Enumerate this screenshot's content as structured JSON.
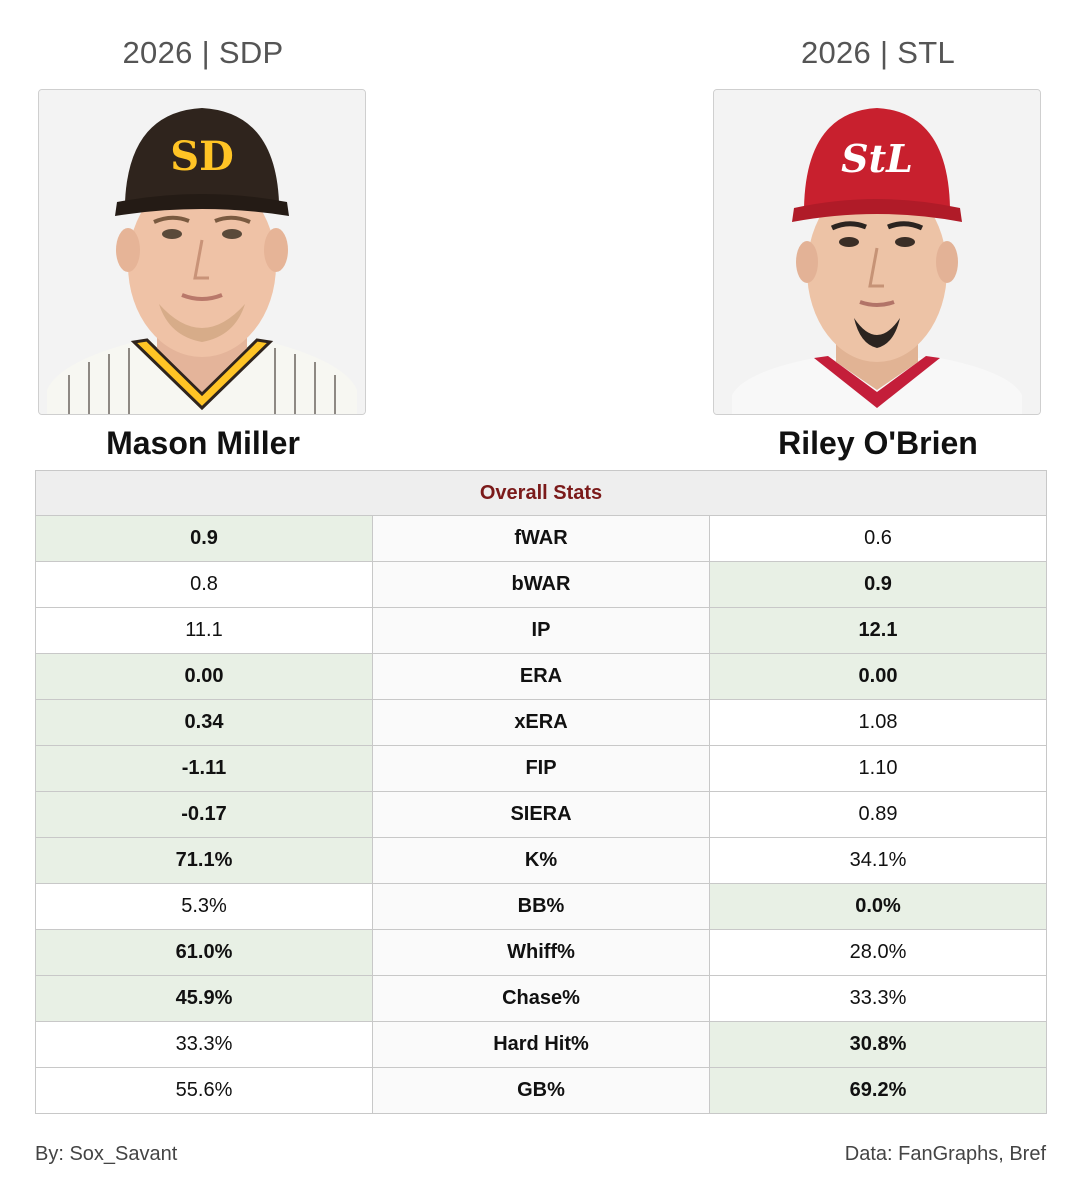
{
  "left_player": {
    "season_team": "2026 | SDP",
    "name": "Mason Miller"
  },
  "right_player": {
    "season_team": "2026 | STL",
    "name": "Riley O'Brien"
  },
  "table": {
    "title": "Overall Stats",
    "rows": [
      {
        "stat": "fWAR",
        "left": "0.9",
        "right": "0.6",
        "winner": "left"
      },
      {
        "stat": "bWAR",
        "left": "0.8",
        "right": "0.9",
        "winner": "right"
      },
      {
        "stat": "IP",
        "left": "11.1",
        "right": "12.1",
        "winner": "right"
      },
      {
        "stat": "ERA",
        "left": "0.00",
        "right": "0.00",
        "winner": "both"
      },
      {
        "stat": "xERA",
        "left": "0.34",
        "right": "1.08",
        "winner": "left"
      },
      {
        "stat": "FIP",
        "left": "-1.11",
        "right": "1.10",
        "winner": "left"
      },
      {
        "stat": "SIERA",
        "left": "-0.17",
        "right": "0.89",
        "winner": "left"
      },
      {
        "stat": "K%",
        "left": "71.1%",
        "right": "34.1%",
        "winner": "left"
      },
      {
        "stat": "BB%",
        "left": "5.3%",
        "right": "0.0%",
        "winner": "right"
      },
      {
        "stat": "Whiff%",
        "left": "61.0%",
        "right": "28.0%",
        "winner": "left"
      },
      {
        "stat": "Chase%",
        "left": "45.9%",
        "right": "33.3%",
        "winner": "left"
      },
      {
        "stat": "Hard Hit%",
        "left": "33.3%",
        "right": "30.8%",
        "winner": "right"
      },
      {
        "stat": "GB%",
        "left": "55.6%",
        "right": "69.2%",
        "winner": "right"
      }
    ]
  },
  "footer": {
    "author": "By: Sox_Savant",
    "source": "Data: FanGraphs, Bref"
  },
  "colors": {
    "winner_bg": "#e8f0e5",
    "title_color": "#7b1a1a",
    "padres_brown": "#2f241d",
    "padres_gold": "#ffc425",
    "cardinals_red": "#c41e3a"
  }
}
